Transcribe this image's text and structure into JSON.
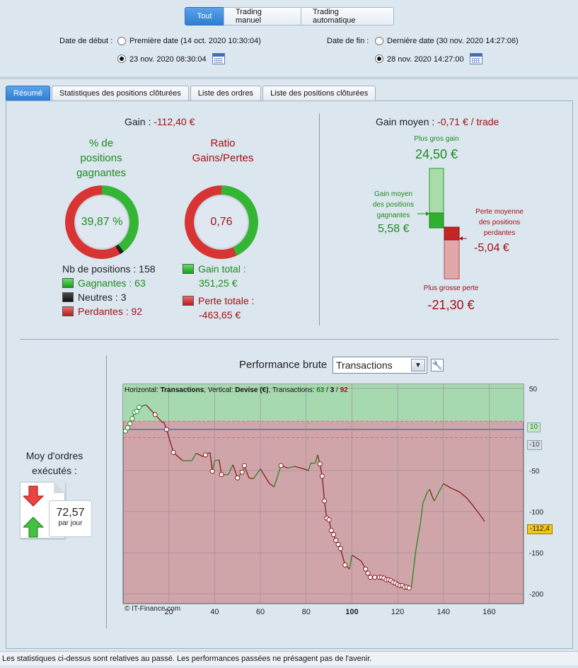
{
  "mode_tabs": [
    "Tout",
    "Trading manuel",
    "Trading automatique"
  ],
  "dates": {
    "start_label": "Date de début :",
    "start_opt1": "Première date (14 oct. 2020 10:30:04)",
    "start_opt2": "23 nov. 2020 08:30:04",
    "end_label": "Date de fin :",
    "end_opt1": "Dernière date (30 nov. 2020 14:27:06)",
    "end_opt2": "28 nov. 2020 14:27:00"
  },
  "tabs": [
    "Résumé",
    "Statistiques des positions clôturées",
    "Liste des ordres",
    "Liste des positions clôturées"
  ],
  "summary": {
    "gain_label": "Gain :",
    "gain_value": "-112,40 €",
    "pct_title_1": "% de",
    "pct_title_2": "positions",
    "pct_title_3": "gagnantes",
    "pct_value": "39,87 %",
    "ratio_title_1": "Ratio",
    "ratio_title_2": "Gains/Pertes",
    "ratio_value": "0,76",
    "nb_positions": "Nb de positions : 158",
    "gagnantes": "Gagnantes : 63",
    "neutres": "Neutres : 3",
    "perdantes": "Perdantes : 92",
    "gain_total_label": "Gain total :",
    "gain_total_value": "351,25 €",
    "perte_totale_label": "Perte totale :",
    "perte_totale_value": "-463,65 €",
    "winloss": {
      "win": 63,
      "neutral": 3,
      "loss": 92
    },
    "ratio_fraction": 0.76
  },
  "avg": {
    "label": "Gain moyen :",
    "value": "-0,71 € / trade",
    "max_gain_label": "Plus gros gain",
    "max_gain_value": "24,50 €",
    "avg_gain_label_1": "Gain moyen",
    "avg_gain_label_2": "des positions",
    "avg_gain_label_3": "gagnantes",
    "avg_gain_value": "5,58 €",
    "avg_loss_label_1": "Perte moyenne",
    "avg_loss_label_2": "des positions",
    "avg_loss_label_3": "perdantes",
    "avg_loss_value": "-5,04 €",
    "max_loss_label": "Plus grosse perte",
    "max_loss_value": "-21,30 €"
  },
  "orders": {
    "title_1": "Moy d'ordres",
    "title_2": "exécutés :",
    "value": "72,57",
    "unit": "par jour"
  },
  "perf": {
    "title": "Performance brute",
    "select_value": "Transactions",
    "info_prefix": "Horizontal: ",
    "info_h": "Transactions",
    "info_mid": ", Vertical: ",
    "info_v": "Devise (€)",
    "info_tr": ", Transactions: ",
    "info_g": "63",
    "info_slash1": " / ",
    "info_n": "3",
    "info_slash2": " / ",
    "info_r": "92",
    "copyright": "© IT-Finance.com",
    "last_label": "-112,4",
    "band_hi": "10",
    "band_lo": "-10"
  },
  "chart_data": {
    "type": "line",
    "xlim": [
      0,
      175
    ],
    "ylim": [
      -212,
      55
    ],
    "x_ticks": [
      20,
      40,
      60,
      80,
      100,
      120,
      140,
      160
    ],
    "y_ticks": [
      50,
      -50,
      -100,
      -150,
      -200
    ],
    "bands": {
      "upper": 10,
      "lower": -10,
      "zero": 0
    },
    "series": [
      {
        "x": [
          1,
          2,
          3,
          4,
          5,
          6,
          7,
          10,
          14,
          17,
          18,
          19,
          22,
          26,
          28,
          30,
          32,
          35,
          36,
          38,
          39,
          40,
          42,
          43,
          46,
          48,
          50,
          52,
          53,
          55,
          57,
          60,
          64,
          66,
          69,
          72,
          75,
          79,
          81,
          82,
          84,
          85,
          86,
          87,
          88,
          89,
          90,
          91,
          92,
          93,
          94,
          95,
          97,
          99,
          100,
          104,
          106,
          107,
          108,
          109,
          110,
          111,
          112,
          113,
          114,
          115,
          116,
          117,
          118,
          119,
          120,
          121,
          122,
          123,
          124,
          125,
          126,
          128,
          130,
          131,
          133,
          134,
          135,
          136,
          139,
          140,
          143,
          147,
          150,
          153,
          156,
          158
        ],
        "y": [
          -2,
          2,
          7,
          13,
          21,
          22,
          27,
          30,
          18,
          9,
          8,
          0,
          -28,
          -38,
          -38,
          -38,
          -29,
          -33,
          -31,
          -28,
          -51,
          -38,
          -37,
          -55,
          -55,
          -43,
          -59,
          -52,
          -44,
          -59,
          -60,
          -48,
          -66,
          -70,
          -44,
          -47,
          -45,
          -48,
          -50,
          -41,
          -41,
          -31,
          -42,
          -57,
          -87,
          -108,
          -110,
          -123,
          -128,
          -135,
          -140,
          -145,
          -165,
          -170,
          -153,
          -160,
          -170,
          -175,
          -180,
          -180,
          -180,
          -180,
          -180,
          -180,
          -181,
          -183,
          -183,
          -184,
          -186,
          -187,
          -189,
          -190,
          -190,
          -192,
          -192,
          -193,
          -192,
          -146,
          -113,
          -90,
          -76,
          -73,
          -81,
          -87,
          -71,
          -66,
          -71,
          -76,
          -83,
          -93,
          -104,
          -112
        ]
      }
    ]
  }
}
